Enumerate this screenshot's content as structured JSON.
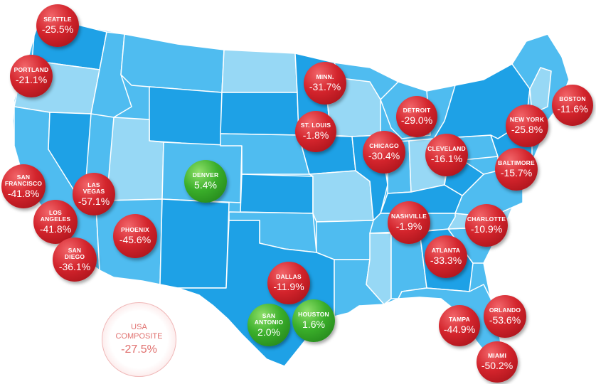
{
  "colors": {
    "decline": "#d3242c",
    "gain": "#3aae2a",
    "state_dark": "#1ea1e6",
    "state_mid": "#4fbcf0",
    "state_light": "#97d8f5",
    "border": "#ffffff"
  },
  "cities": [
    {
      "name": "SEATTLE",
      "change": "-25.5%",
      "trend": "decline"
    },
    {
      "name": "PORTLAND",
      "change": "-21.1%",
      "trend": "decline"
    },
    {
      "name": "SAN\nFRANCISCO",
      "change": "-41.8%",
      "trend": "decline"
    },
    {
      "name": "LOS\nANGELES",
      "change": "-41.8%",
      "trend": "decline"
    },
    {
      "name": "SAN\nDIEGO",
      "change": "-36.1%",
      "trend": "decline"
    },
    {
      "name": "LAS\nVEGAS",
      "change": "-57.1%",
      "trend": "decline"
    },
    {
      "name": "PHOENIX",
      "change": "-45.6%",
      "trend": "decline"
    },
    {
      "name": "DENVER",
      "change": "5.4%",
      "trend": "gain"
    },
    {
      "name": "MINN.",
      "change": "-31.7%",
      "trend": "decline"
    },
    {
      "name": "ST. LOUIS",
      "change": "-1.8%",
      "trend": "decline"
    },
    {
      "name": "DETROIT",
      "change": "-29.0%",
      "trend": "decline"
    },
    {
      "name": "CHICAGO",
      "change": "-30.4%",
      "trend": "decline"
    },
    {
      "name": "CLEVELAND",
      "change": "-16.1%",
      "trend": "decline"
    },
    {
      "name": "BOSTON",
      "change": "-11.6%",
      "trend": "decline"
    },
    {
      "name": "NEW YORK",
      "change": "-25.8%",
      "trend": "decline"
    },
    {
      "name": "BALTIMORE",
      "change": "-15.7%",
      "trend": "decline"
    },
    {
      "name": "NASHVILLE",
      "change": "-1.9%",
      "trend": "decline"
    },
    {
      "name": "CHARLOTTE",
      "change": "-10.9%",
      "trend": "decline"
    },
    {
      "name": "ATLANTA",
      "change": "-33.3%",
      "trend": "decline"
    },
    {
      "name": "DALLAS",
      "change": "-11.9%",
      "trend": "decline"
    },
    {
      "name": "SAN\nANTONIO",
      "change": "2.0%",
      "trend": "gain"
    },
    {
      "name": "HOUSTON",
      "change": "1.6%",
      "trend": "gain"
    },
    {
      "name": "TAMPA",
      "change": "-44.9%",
      "trend": "decline"
    },
    {
      "name": "ORLANDO",
      "change": "-53.6%",
      "trend": "decline"
    },
    {
      "name": "MIAMI",
      "change": "-50.2%",
      "trend": "decline"
    }
  ],
  "composite": {
    "label": "USA\nCOMPOSITE",
    "change": "-27.5%"
  }
}
